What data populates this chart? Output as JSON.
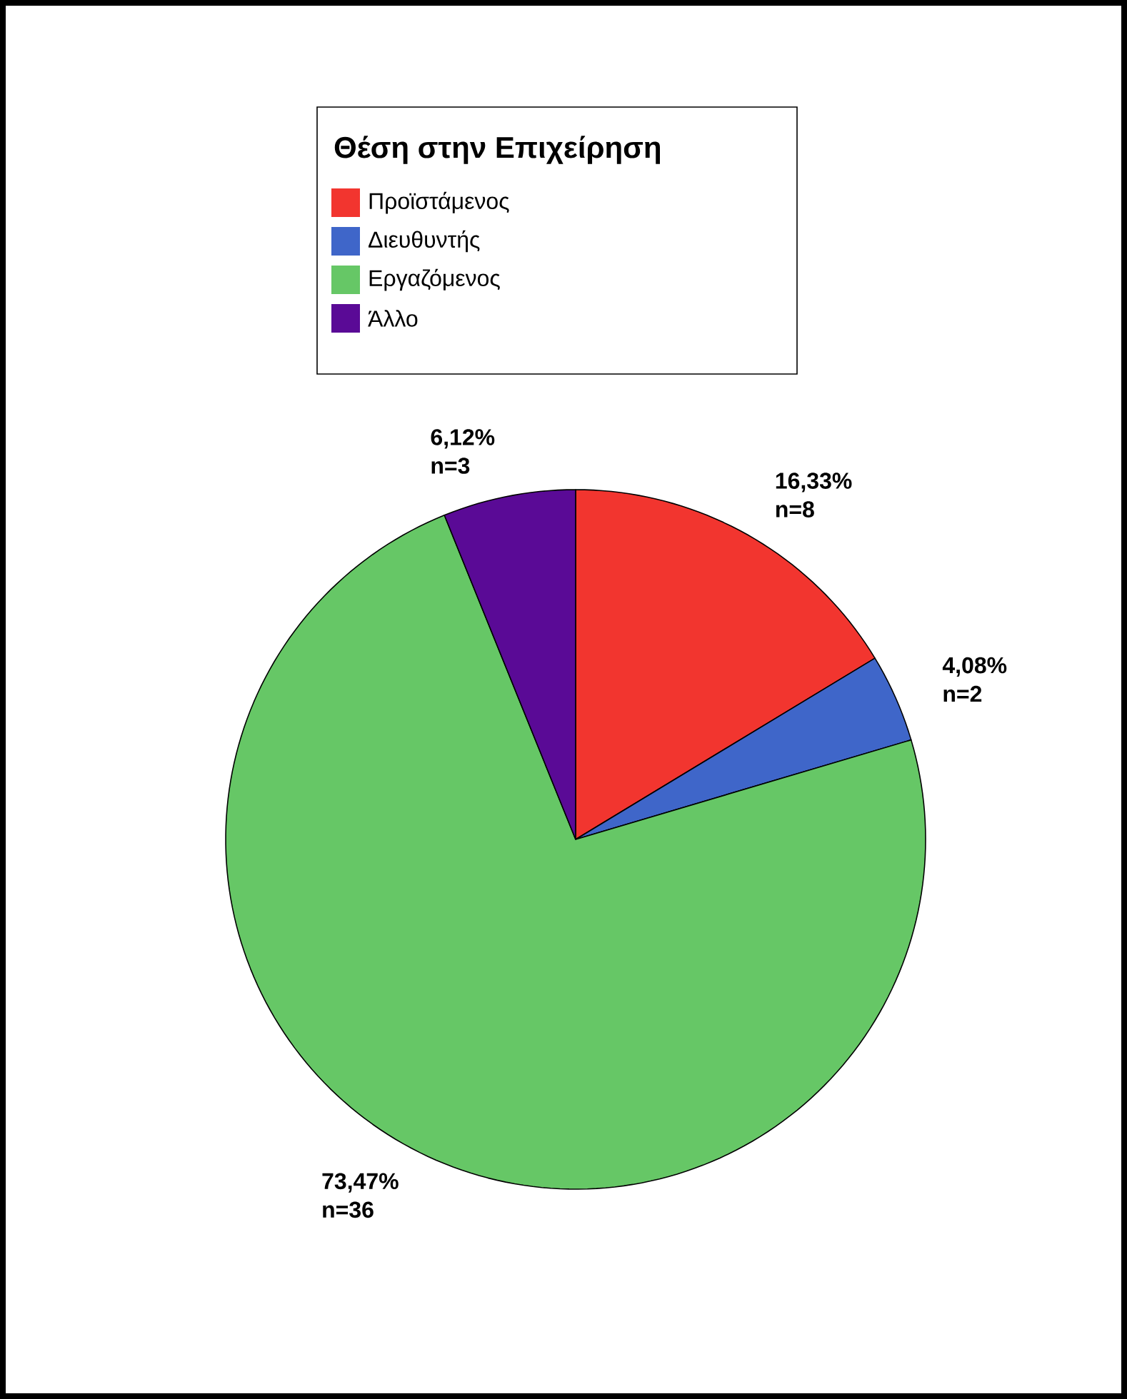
{
  "chart_data": {
    "type": "pie",
    "legend_title": "Θέση στην Επιχείρηση",
    "legend": "top",
    "categories": [
      "Προϊστάμενος",
      "Διευθυντής",
      "Εργαζόμενος",
      "Άλλο"
    ],
    "values": [
      16.33,
      4.08,
      73.47,
      6.12
    ],
    "colors": [
      "#f2352f",
      "#3f66c9",
      "#66c766",
      "#5a0a96"
    ],
    "value_labels": [
      "16,33%",
      "4,08%",
      "73,47%",
      "6,12%"
    ],
    "annotations": [
      "n=8",
      "n=2",
      "n=36",
      "n=3"
    ]
  }
}
